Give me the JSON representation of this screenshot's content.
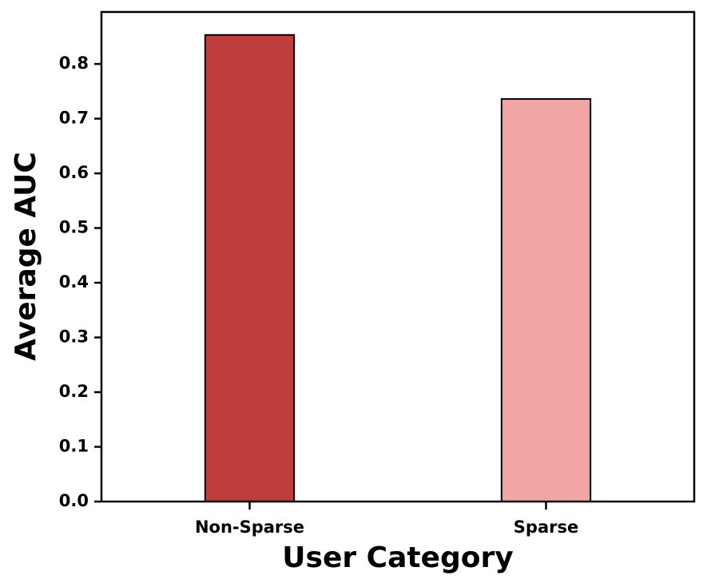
{
  "chart_data": {
    "type": "bar",
    "x_label": "User Category",
    "y_label": "Average AUC",
    "categories": [
      "Non-Sparse",
      "Sparse"
    ],
    "values": [
      0.853,
      0.736
    ],
    "colors": [
      "#be3d3d",
      "#f2a5a5"
    ],
    "ylim": [
      0,
      0.895
    ],
    "yticks": [
      {
        "value": 0,
        "label": "0.0"
      },
      0.1,
      0.2,
      0.3,
      0.4,
      0.5,
      0.6,
      0.7,
      0.8
    ],
    "grid": false
  }
}
